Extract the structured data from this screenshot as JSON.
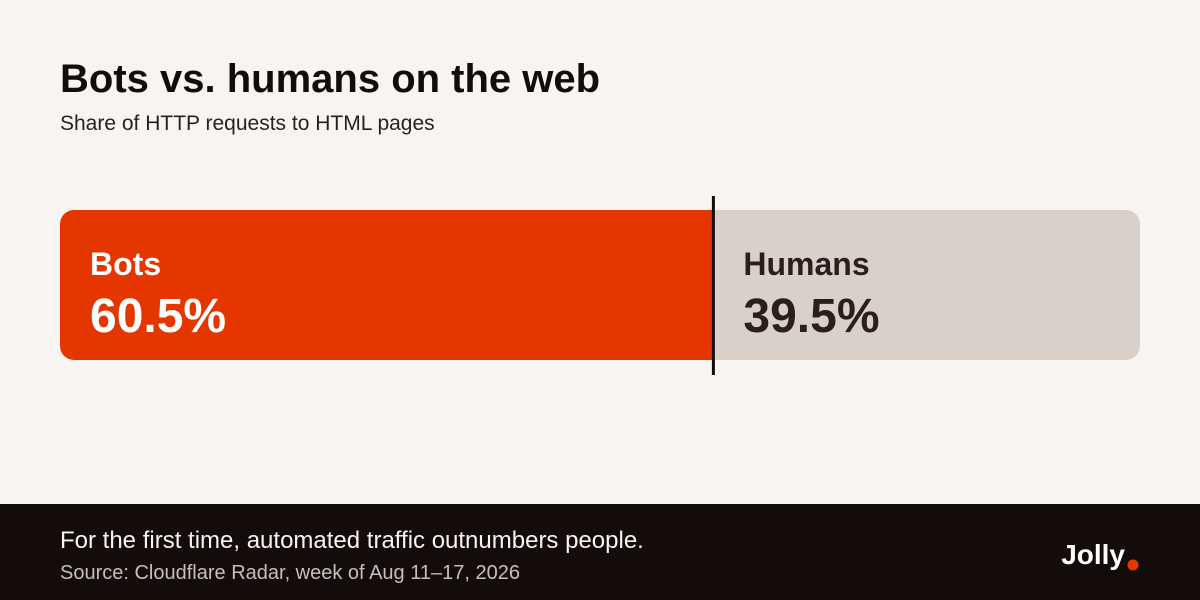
{
  "chart_data": {
    "type": "stacked-bar",
    "title": "Bots vs. humans on the web",
    "subtitle": "Share of HTTP requests to HTML pages",
    "series": [
      {
        "name": "Bots",
        "color": "#e63600",
        "text_color": "#ffffff",
        "values": [
          60.5
        ],
        "value_labels": [
          "60.5%"
        ]
      },
      {
        "name": "Humans",
        "color": "#d9d0ca",
        "text_color": "#2a1f1c",
        "values": [
          39.5
        ],
        "value_labels": [
          "39.5%"
        ]
      }
    ],
    "annotation": "For the first time, automated traffic outnumbers people.",
    "source": "Source: Cloudflare Radar, week of Aug 11–17, 2026",
    "brand": "Jolly"
  }
}
